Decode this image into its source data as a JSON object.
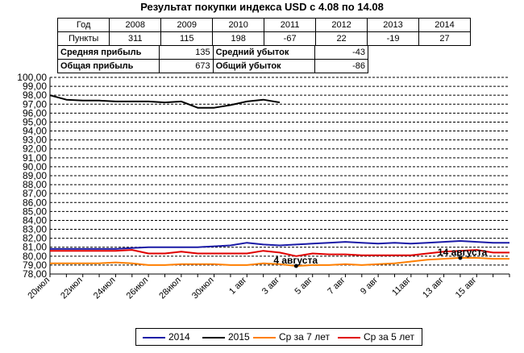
{
  "title": "Результат покупки индекса USD с 4.08 по 14.08",
  "results_table": {
    "header_label": "Год",
    "years": [
      "2008",
      "2009",
      "2010",
      "2011",
      "2012",
      "2013",
      "2014"
    ],
    "points_label": "Пункты",
    "points": [
      "311",
      "115",
      "198",
      "-67",
      "22",
      "-19",
      "27"
    ],
    "avg_profit_label": "Средняя прибыль",
    "avg_profit": "135",
    "avg_loss_label": "Средний убыток",
    "avg_loss": "-43",
    "total_profit_label": "Общая прибыль",
    "total_profit": "673",
    "total_loss_label": "Общий убыток",
    "total_loss": "-86"
  },
  "colors": {
    "s2014": "#1a1aa6",
    "s2015": "#000000",
    "avg7": "#ff7f00",
    "avg5": "#e00000",
    "grid": "#000000"
  },
  "chart_data": {
    "type": "line",
    "ylim": [
      78,
      100
    ],
    "yticks": [
      "78,00",
      "79,00",
      "80,00",
      "81,00",
      "82,00",
      "83,00",
      "84,00",
      "85,00",
      "86,00",
      "87,00",
      "88,00",
      "89,00",
      "90,00",
      "91,00",
      "92,00",
      "93,00",
      "94,00",
      "95,00",
      "96,00",
      "97,00",
      "98,00",
      "99,00",
      "100,00"
    ],
    "xlabels": [
      "20июл",
      "22июл",
      "24июл",
      "26июл",
      "28июл",
      "30июл",
      "1 авг",
      "3 авг",
      "5 авг",
      "7 авг",
      "9 авг",
      "11авг",
      "13 авг",
      "15 авг"
    ],
    "days": 29,
    "grid": "horizontal dashed",
    "legend_position": "bottom",
    "series": [
      {
        "name": "2014",
        "color_key": "s2014",
        "values": [
          80.8,
          80.8,
          80.8,
          80.8,
          80.8,
          80.9,
          81.0,
          81.0,
          81.0,
          81.0,
          81.1,
          81.2,
          81.5,
          81.3,
          81.2,
          81.3,
          81.4,
          81.5,
          81.6,
          81.5,
          81.4,
          81.5,
          81.4,
          81.5,
          81.6,
          81.7,
          81.6,
          81.5,
          81.5
        ]
      },
      {
        "name": "2015",
        "color_key": "s2015",
        "values": [
          98.0,
          97.5,
          97.4,
          97.4,
          97.3,
          97.3,
          97.3,
          97.2,
          97.3,
          96.6,
          96.6,
          96.9,
          97.3,
          97.5,
          97.2
        ]
      },
      {
        "name": "Ср за 7 лет",
        "color_key": "avg7",
        "values": [
          79.2,
          79.2,
          79.2,
          79.2,
          79.3,
          79.2,
          79.0,
          79.0,
          79.1,
          79.1,
          79.1,
          79.0,
          79.0,
          79.2,
          79.1,
          78.9,
          79.0,
          79.0,
          79.1,
          79.0,
          79.1,
          79.2,
          79.4,
          79.6,
          79.7,
          79.8,
          79.8,
          79.7,
          79.7
        ]
      },
      {
        "name": "Ср за 5 лет",
        "color_key": "avg5",
        "values": [
          80.6,
          80.6,
          80.6,
          80.6,
          80.6,
          80.7,
          80.3,
          80.3,
          80.5,
          80.3,
          80.3,
          80.3,
          80.3,
          80.6,
          80.4,
          80.0,
          80.3,
          80.2,
          80.2,
          80.1,
          80.1,
          80.1,
          80.1,
          80.3,
          80.5,
          80.6,
          80.7,
          80.4,
          80.4
        ]
      }
    ],
    "annotations": [
      {
        "text": "4 августа",
        "day": 15,
        "value": 78.9,
        "series_key": "avg7"
      },
      {
        "text": "14 августа",
        "day": 25,
        "value": 79.8,
        "series_key": "avg7"
      }
    ]
  },
  "legend": {
    "items": [
      {
        "label": "2014",
        "color_key": "s2014"
      },
      {
        "label": "2015",
        "color_key": "s2015"
      },
      {
        "label": "Ср за 7 лет",
        "color_key": "avg7"
      },
      {
        "label": "Ср за 5 лет",
        "color_key": "avg5"
      }
    ]
  }
}
